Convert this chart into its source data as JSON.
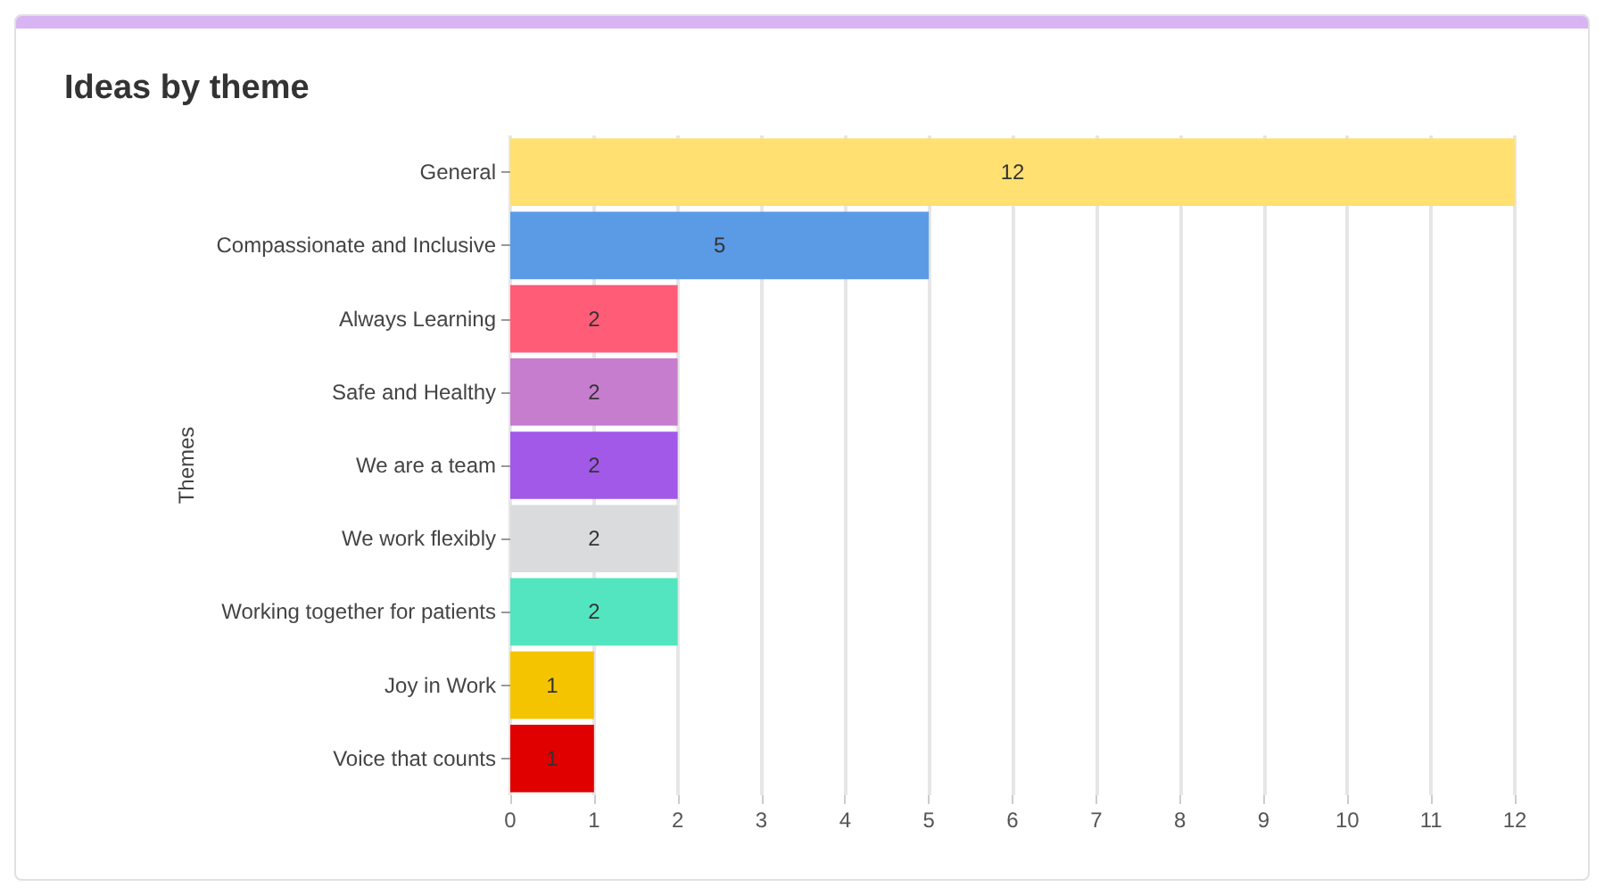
{
  "chart_data": {
    "type": "bar",
    "orientation": "horizontal",
    "title": "Ideas by theme",
    "ylabel": "Themes",
    "categories": [
      "General",
      "Compassionate and Inclusive",
      "Always Learning",
      "Safe and Healthy",
      "We are a team",
      "We work flexibly",
      "Working together for patients",
      "Joy in Work",
      "Voice that counts"
    ],
    "values": [
      12,
      5,
      2,
      2,
      2,
      2,
      2,
      1,
      1
    ],
    "colors": [
      "#ffe070",
      "#5b9be6",
      "#ff5c78",
      "#c77dce",
      "#a259e8",
      "#d9dbdd",
      "#52e5c0",
      "#f5c400",
      "#e00000"
    ],
    "xlim": [
      0,
      12
    ],
    "xticks": [
      0,
      1,
      2,
      3,
      4,
      5,
      6,
      7,
      8,
      9,
      10,
      11,
      12
    ],
    "grid": "x",
    "data_labels": true
  }
}
